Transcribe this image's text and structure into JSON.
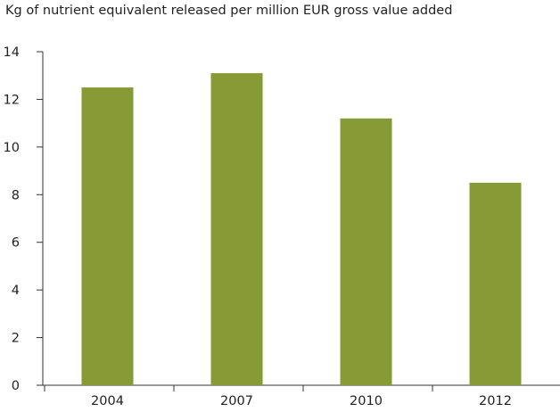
{
  "chart_data": {
    "type": "bar",
    "title": "",
    "ylabel": "Kg of nutrient equivalent released per million EUR gross value added",
    "xlabel": "",
    "categories": [
      "2004",
      "2007",
      "2010",
      "2012"
    ],
    "values": [
      12.5,
      13.1,
      11.2,
      8.5
    ],
    "ylim": [
      0,
      14
    ],
    "yticks": [
      0,
      2,
      4,
      6,
      8,
      10,
      12,
      14
    ],
    "grid": false,
    "bar_color": "#889a35",
    "axis_color": "#333333"
  }
}
